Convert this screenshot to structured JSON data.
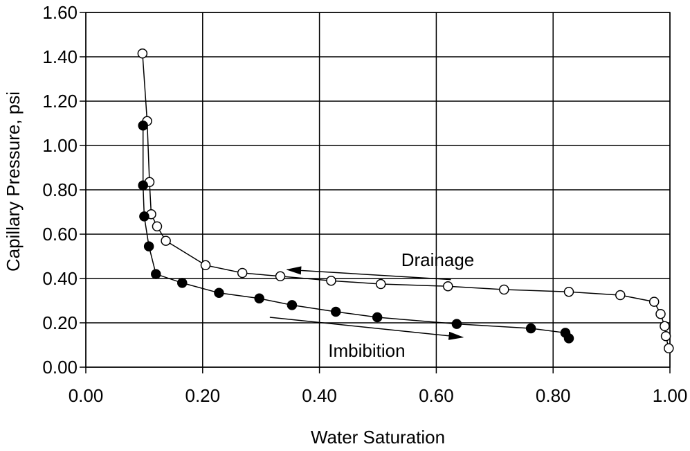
{
  "chart_data": {
    "type": "scatter",
    "xlabel": "Water Saturation",
    "ylabel": "Capillary Pressure, psi",
    "xlim": [
      0,
      1
    ],
    "ylim": [
      0,
      1.6
    ],
    "x_ticks": [
      "0.00",
      "0.20",
      "0.40",
      "0.60",
      "0.80",
      "1.00"
    ],
    "y_ticks": [
      "0.00",
      "0.20",
      "0.40",
      "0.60",
      "0.80",
      "1.00",
      "1.20",
      "1.40",
      "1.60"
    ],
    "grid": true,
    "series": [
      {
        "name": "Drainage",
        "marker": "open-circle",
        "x": [
          0.998,
          0.993,
          0.991,
          0.984,
          0.973,
          0.915,
          0.827,
          0.716,
          0.62,
          0.505,
          0.42,
          0.333,
          0.268,
          0.205,
          0.137,
          0.122,
          0.112,
          0.109,
          0.105,
          0.097
        ],
        "y": [
          0.085,
          0.14,
          0.185,
          0.24,
          0.295,
          0.325,
          0.34,
          0.35,
          0.365,
          0.375,
          0.39,
          0.41,
          0.425,
          0.46,
          0.57,
          0.635,
          0.69,
          0.835,
          1.11,
          1.415
        ]
      },
      {
        "name": "Imbibition",
        "marker": "filled-circle",
        "x": [
          0.098,
          0.098,
          0.1,
          0.108,
          0.12,
          0.165,
          0.228,
          0.297,
          0.353,
          0.428,
          0.499,
          0.635,
          0.762,
          0.821,
          0.827
        ],
        "y": [
          1.09,
          0.82,
          0.68,
          0.545,
          0.42,
          0.38,
          0.335,
          0.31,
          0.28,
          0.25,
          0.225,
          0.195,
          0.175,
          0.155,
          0.13
        ]
      }
    ],
    "annotations": [
      {
        "text": "Drainage",
        "x": 0.54,
        "y": 0.485,
        "arrow_from": [
          0.625,
          0.395
        ],
        "arrow_to": [
          0.345,
          0.44
        ]
      },
      {
        "text": "Imbibition",
        "x": 0.415,
        "y": 0.075,
        "arrow_from": [
          0.315,
          0.225
        ],
        "arrow_to": [
          0.645,
          0.135
        ]
      }
    ],
    "colors": {
      "line": "#000000",
      "grid": "#000000",
      "open_fill": "#ffffff",
      "filled_fill": "#000000"
    }
  }
}
